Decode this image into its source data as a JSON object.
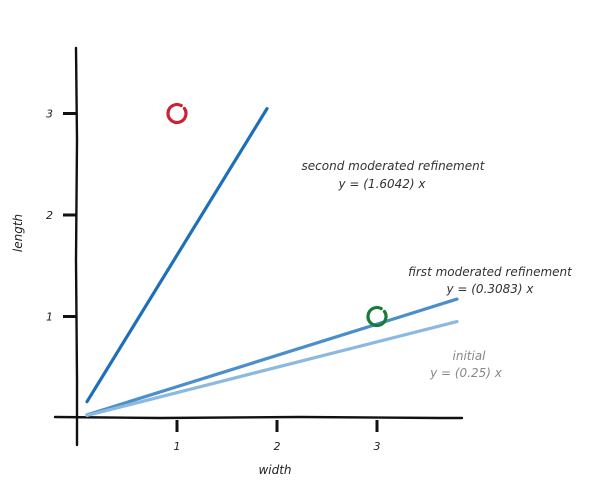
{
  "chart_data": {
    "type": "scatter",
    "xlabel": "width",
    "ylabel": "length",
    "xlim": [
      -0.2,
      3.8
    ],
    "ylim": [
      -0.2,
      3.75
    ],
    "x_ticks": [
      "1",
      "2",
      "3"
    ],
    "y_ticks": [
      "1",
      "2",
      "3"
    ],
    "grid": false,
    "points": [
      {
        "x": 1,
        "y": 3,
        "color": "#cc2233"
      },
      {
        "x": 3,
        "y": 1,
        "color": "#1a7a3a"
      }
    ],
    "series": [
      {
        "label_name": "second moderated refinement",
        "equation": "y = (1.6042) x",
        "slope": 1.6042,
        "x_range": [
          0.1,
          1.9
        ],
        "color": "#1f6fb8"
      },
      {
        "label_name": "first moderated refinement",
        "equation": "y = (0.3083) x",
        "slope": 0.3083,
        "x_range": [
          0.1,
          3.8
        ],
        "color": "#4a8fca"
      },
      {
        "label_name": "initial",
        "equation": "y = (0.25) x",
        "slope": 0.25,
        "x_range": [
          0.1,
          3.8
        ],
        "color": "#8bb9e0"
      }
    ]
  }
}
